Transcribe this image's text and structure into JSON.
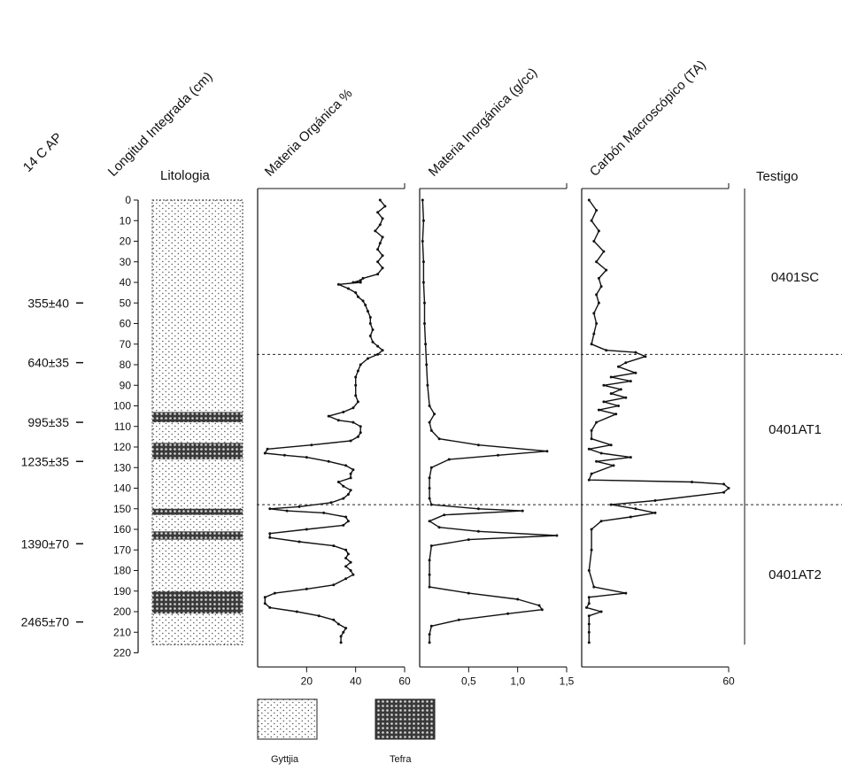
{
  "headers": {
    "age": "14 C AP",
    "depth": "Longitud Integrada (cm)",
    "lithology": "Litologia",
    "organic": "Materia Orgánica %",
    "inorganic": "Materia Inorgánica (g/cc)",
    "charcoal": "Carbón Macroscópico (TA)",
    "core": "Testigo"
  },
  "depth_ticks": [
    "0",
    "10",
    "20",
    "30",
    "40",
    "50",
    "60",
    "70",
    "80",
    "90",
    "100",
    "110",
    "120",
    "130",
    "140",
    "150",
    "160",
    "170",
    "180",
    "190",
    "200",
    "210",
    "220"
  ],
  "ages": [
    {
      "label": "355±40",
      "depth": 50
    },
    {
      "label": "640±35",
      "depth": 79
    },
    {
      "label": "995±35",
      "depth": 108
    },
    {
      "label": "1235±35",
      "depth": 127
    },
    {
      "label": "1390±70",
      "depth": 167
    },
    {
      "label": "2465±70",
      "depth": 205
    }
  ],
  "cores": [
    {
      "label": "0401SC",
      "depth_top": 0,
      "depth_bottom": 75
    },
    {
      "label": "0401AT1",
      "depth_top": 75,
      "depth_bottom": 148
    },
    {
      "label": "0401AT2",
      "depth_top": 148,
      "depth_bottom": 216
    }
  ],
  "core_boundaries": [
    75,
    148
  ],
  "lithology": {
    "top": 0,
    "bottom": 216,
    "tefra_layers": [
      [
        103,
        108
      ],
      [
        118,
        126
      ],
      [
        150,
        153
      ],
      [
        161,
        165
      ],
      [
        190,
        201
      ]
    ]
  },
  "legend": [
    {
      "label": "Gyttjia",
      "pattern": "gyttja"
    },
    {
      "label": "Tefra",
      "pattern": "tefra"
    }
  ],
  "chart_data": [
    {
      "type": "line",
      "title": "Materia Orgánica %",
      "xlabel": "Materia Orgánica %",
      "ylabel": "Longitud Integrada (cm)",
      "x_ticks": [
        "20",
        "40",
        "60"
      ],
      "xlim": [
        0,
        60
      ],
      "ylim": [
        220,
        0
      ],
      "grid": false,
      "series": [
        {
          "name": "",
          "points": [
            [
              50,
              0
            ],
            [
              52,
              3
            ],
            [
              49,
              6
            ],
            [
              51,
              9
            ],
            [
              50,
              12
            ],
            [
              48,
              15
            ],
            [
              51,
              18
            ],
            [
              50,
              21
            ],
            [
              49,
              24
            ],
            [
              51,
              27
            ],
            [
              49,
              30
            ],
            [
              51,
              33
            ],
            [
              49,
              36
            ],
            [
              43,
              38
            ],
            [
              42,
              39
            ],
            [
              39,
              40
            ],
            [
              42,
              40
            ],
            [
              33,
              41
            ],
            [
              37,
              43
            ],
            [
              40,
              45
            ],
            [
              41,
              47
            ],
            [
              43,
              49
            ],
            [
              44,
              51
            ],
            [
              45,
              54
            ],
            [
              46,
              57
            ],
            [
              46,
              60
            ],
            [
              47,
              63
            ],
            [
              46,
              66
            ],
            [
              47,
              69
            ],
            [
              49,
              71
            ],
            [
              51,
              73
            ],
            [
              49,
              75
            ],
            [
              45,
              77
            ],
            [
              42,
              80
            ],
            [
              41,
              83
            ],
            [
              40,
              86
            ],
            [
              40,
              90
            ],
            [
              40,
              95
            ],
            [
              41,
              98
            ],
            [
              39,
              101
            ],
            [
              35,
              103
            ],
            [
              29,
              105
            ],
            [
              33,
              107
            ],
            [
              39,
              108
            ],
            [
              42,
              110
            ],
            [
              42,
              113
            ],
            [
              41,
              115
            ],
            [
              38,
              117
            ],
            [
              22,
              119
            ],
            [
              4,
              121
            ],
            [
              3,
              123
            ],
            [
              11,
              124
            ],
            [
              20,
              125
            ],
            [
              29,
              127
            ],
            [
              36,
              129
            ],
            [
              39,
              131
            ],
            [
              38,
              133
            ],
            [
              38,
              135
            ],
            [
              33,
              137
            ],
            [
              35,
              139
            ],
            [
              38,
              141
            ],
            [
              37,
              143
            ],
            [
              35,
              145
            ],
            [
              30,
              147
            ],
            [
              17,
              149
            ],
            [
              5,
              150
            ],
            [
              12,
              151
            ],
            [
              27,
              152
            ],
            [
              36,
              154
            ],
            [
              37,
              156
            ],
            [
              35,
              158
            ],
            [
              20,
              160
            ],
            [
              5,
              162
            ],
            [
              5,
              164
            ],
            [
              17,
              166
            ],
            [
              31,
              168
            ],
            [
              36,
              170
            ],
            [
              37,
              172
            ],
            [
              36,
              174
            ],
            [
              38,
              176
            ],
            [
              36,
              178
            ],
            [
              38,
              180
            ],
            [
              39,
              182
            ],
            [
              36,
              184
            ],
            [
              31,
              187
            ],
            [
              20,
              189
            ],
            [
              7,
              191
            ],
            [
              3,
              193
            ],
            [
              3,
              196
            ],
            [
              5,
              198
            ],
            [
              16,
              200
            ],
            [
              25,
              202
            ],
            [
              31,
              204
            ],
            [
              33,
              206
            ],
            [
              36,
              208
            ],
            [
              35,
              210
            ],
            [
              34,
              212
            ],
            [
              34,
              215
            ]
          ]
        }
      ]
    },
    {
      "type": "line",
      "title": "Materia Inorgánica (g/cc)",
      "xlabel": "Materia Inorgánica (g/cc)",
      "ylabel": "Longitud Integrada (cm)",
      "x_ticks": [
        "0,5",
        "1,0",
        "1,5"
      ],
      "xlim": [
        0,
        1.5
      ],
      "ylim": [
        220,
        0
      ],
      "grid": false,
      "series": [
        {
          "name": "",
          "points": [
            [
              0.03,
              0
            ],
            [
              0.04,
              10
            ],
            [
              0.03,
              20
            ],
            [
              0.04,
              30
            ],
            [
              0.04,
              40
            ],
            [
              0.05,
              50
            ],
            [
              0.05,
              60
            ],
            [
              0.06,
              70
            ],
            [
              0.07,
              80
            ],
            [
              0.08,
              90
            ],
            [
              0.1,
              100
            ],
            [
              0.15,
              104
            ],
            [
              0.1,
              108
            ],
            [
              0.12,
              112
            ],
            [
              0.2,
              116
            ],
            [
              0.6,
              119
            ],
            [
              1.3,
              122
            ],
            [
              0.8,
              124
            ],
            [
              0.3,
              126
            ],
            [
              0.12,
              130
            ],
            [
              0.1,
              135
            ],
            [
              0.1,
              140
            ],
            [
              0.1,
              145
            ],
            [
              0.12,
              148
            ],
            [
              0.6,
              150
            ],
            [
              1.05,
              151
            ],
            [
              0.25,
              153
            ],
            [
              0.1,
              156
            ],
            [
              0.2,
              159
            ],
            [
              0.6,
              161
            ],
            [
              1.4,
              163
            ],
            [
              0.5,
              165
            ],
            [
              0.12,
              168
            ],
            [
              0.1,
              175
            ],
            [
              0.1,
              182
            ],
            [
              0.1,
              188
            ],
            [
              0.5,
              191
            ],
            [
              1.0,
              194
            ],
            [
              1.22,
              197
            ],
            [
              1.25,
              199
            ],
            [
              0.9,
              201
            ],
            [
              0.4,
              204
            ],
            [
              0.12,
              207
            ],
            [
              0.1,
              211
            ],
            [
              0.1,
              215
            ]
          ]
        }
      ]
    },
    {
      "type": "line",
      "title": "Carbón Macroscópico (TA)",
      "xlabel": "Carbón Macroscópico (TA)",
      "ylabel": "Longitud Integrada (cm)",
      "x_ticks": [
        "60"
      ],
      "xlim": [
        0,
        60
      ],
      "ylim": [
        220,
        0
      ],
      "grid": false,
      "series": [
        {
          "name": "",
          "points": [
            [
              3,
              0
            ],
            [
              6,
              5
            ],
            [
              4,
              10
            ],
            [
              7,
              15
            ],
            [
              5,
              20
            ],
            [
              9,
              25
            ],
            [
              6,
              30
            ],
            [
              10,
              34
            ],
            [
              7,
              38
            ],
            [
              8,
              42
            ],
            [
              6,
              46
            ],
            [
              7,
              50
            ],
            [
              5,
              55
            ],
            [
              6,
              60
            ],
            [
              5,
              65
            ],
            [
              4,
              70
            ],
            [
              10,
              73
            ],
            [
              22,
              74
            ],
            [
              26,
              76
            ],
            [
              18,
              79
            ],
            [
              15,
              81
            ],
            [
              22,
              84
            ],
            [
              12,
              86
            ],
            [
              20,
              88
            ],
            [
              9,
              90
            ],
            [
              16,
              92
            ],
            [
              12,
              94
            ],
            [
              18,
              96
            ],
            [
              9,
              98
            ],
            [
              15,
              100
            ],
            [
              7,
              102
            ],
            [
              14,
              104
            ],
            [
              6,
              108
            ],
            [
              4,
              112
            ],
            [
              4,
              116
            ],
            [
              12,
              119
            ],
            [
              3,
              121
            ],
            [
              8,
              123
            ],
            [
              20,
              125
            ],
            [
              6,
              127
            ],
            [
              13,
              129
            ],
            [
              4,
              133
            ],
            [
              3,
              136
            ],
            [
              45,
              137
            ],
            [
              58,
              138
            ],
            [
              60,
              140
            ],
            [
              58,
              142
            ],
            [
              30,
              146
            ],
            [
              12,
              148
            ],
            [
              22,
              150
            ],
            [
              30,
              152
            ],
            [
              20,
              154
            ],
            [
              8,
              156
            ],
            [
              4,
              160
            ],
            [
              4,
              170
            ],
            [
              3,
              180
            ],
            [
              5,
              188
            ],
            [
              18,
              191
            ],
            [
              3,
              193
            ],
            [
              3,
              196
            ],
            [
              2,
              198
            ],
            [
              8,
              200
            ],
            [
              3,
              202
            ],
            [
              3,
              206
            ],
            [
              3,
              210
            ],
            [
              3,
              215
            ]
          ]
        }
      ]
    }
  ]
}
